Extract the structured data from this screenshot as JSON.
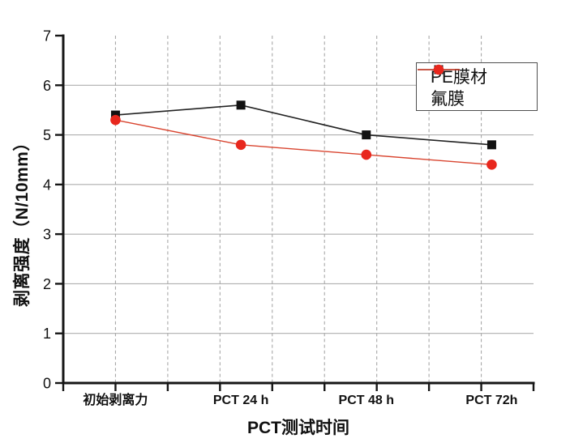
{
  "chart_data": {
    "type": "line",
    "title": "",
    "xlabel": "PCT测试时间",
    "ylabel": "剥离强度（N/10mm）",
    "x": [
      0,
      24,
      48,
      72
    ],
    "x_tick_labels": [
      "初始剥离力",
      "PCT 24 h",
      "PCT 48 h",
      "PCT 72h"
    ],
    "series": [
      {
        "name": "PE膜材",
        "values": [
          5.4,
          5.6,
          5.0,
          4.8
        ],
        "marker": "square",
        "marker_color": "#121212",
        "line_color": "#232323"
      },
      {
        "name": "氟膜",
        "values": [
          5.3,
          4.8,
          4.6,
          4.4
        ],
        "marker": "circle",
        "marker_color": "#e8271d",
        "line_color": "#d94530"
      }
    ],
    "xlim": [
      -10,
      80
    ],
    "ylim": [
      0,
      7
    ],
    "x_ticks": [
      -10,
      0,
      10,
      20,
      30,
      40,
      50,
      60,
      70,
      80
    ],
    "y_ticks": [
      0,
      1,
      2,
      3,
      4,
      5,
      6,
      7
    ],
    "grid": {
      "horizontal_values": [
        1,
        2,
        3,
        4,
        5,
        6
      ],
      "horizontal_style": "solid",
      "vertical_values": [
        0,
        10,
        20,
        30,
        40,
        50,
        60,
        70
      ],
      "vertical_style": "dashed"
    },
    "legend_position": "top-right"
  },
  "colors": {
    "background": "#ffffff",
    "axis": "#161616",
    "tick_label": "#111111",
    "grid_solid": "#aeaeae",
    "grid_dashed": "#a8a8a8",
    "legend_border": "#4f4f4f"
  }
}
